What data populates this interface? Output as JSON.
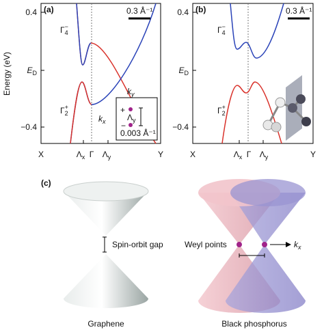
{
  "panel_a": {
    "label": "(a)",
    "y_axis_label": "Energy (eV)",
    "scale_bar": "0.3 Å⁻¹",
    "y_tick_top": "0.4",
    "y_tick_mid": {
      "base": "E",
      "sub": "D"
    },
    "y_tick_bottom": "−0.4",
    "x_labels": {
      "left": "X",
      "lambda_x": {
        "base": "Λ",
        "sub": "x"
      },
      "gamma": "Γ",
      "lambda_y": {
        "base": "Λ",
        "sub": "y"
      },
      "right": "Y"
    },
    "band_upper": {
      "base": "Γ",
      "sub": "4",
      "sup": "−"
    },
    "band_lower": {
      "base": "Γ",
      "sub": "2",
      "sup": "+"
    },
    "inset": {
      "ky": {
        "base": "k",
        "sub": "y"
      },
      "kx": {
        "base": "k",
        "sub": "x"
      },
      "plus": "+",
      "minus": "−",
      "lambda_y": {
        "base": "Λ",
        "sub": "y"
      },
      "scale": "0.003 Å⁻¹"
    }
  },
  "panel_b": {
    "label": "(b)",
    "scale_bar": "0.3 Å⁻¹",
    "y_tick_top": "0.4",
    "y_tick_mid": {
      "base": "E",
      "sub": "D"
    },
    "y_tick_bottom": "−0.4",
    "x_labels": {
      "left": "X",
      "lambda_x": {
        "base": "Λ",
        "sub": "x"
      },
      "gamma": "Γ",
      "lambda_y": {
        "base": "Λ",
        "sub": "y"
      },
      "right": "Y"
    },
    "band_upper": {
      "base": "Γ",
      "sub": "4",
      "sup": "−"
    },
    "band_lower": {
      "base": "Γ",
      "sub": "2",
      "sup": "+"
    }
  },
  "panel_c": {
    "label": "(c)",
    "gap_label": "Spin-orbit gap",
    "weyl_label": "Weyl points",
    "k_label": {
      "base": "k",
      "sub": "x"
    },
    "left_caption": "Graphene",
    "right_caption": "Black phosphorus"
  }
}
